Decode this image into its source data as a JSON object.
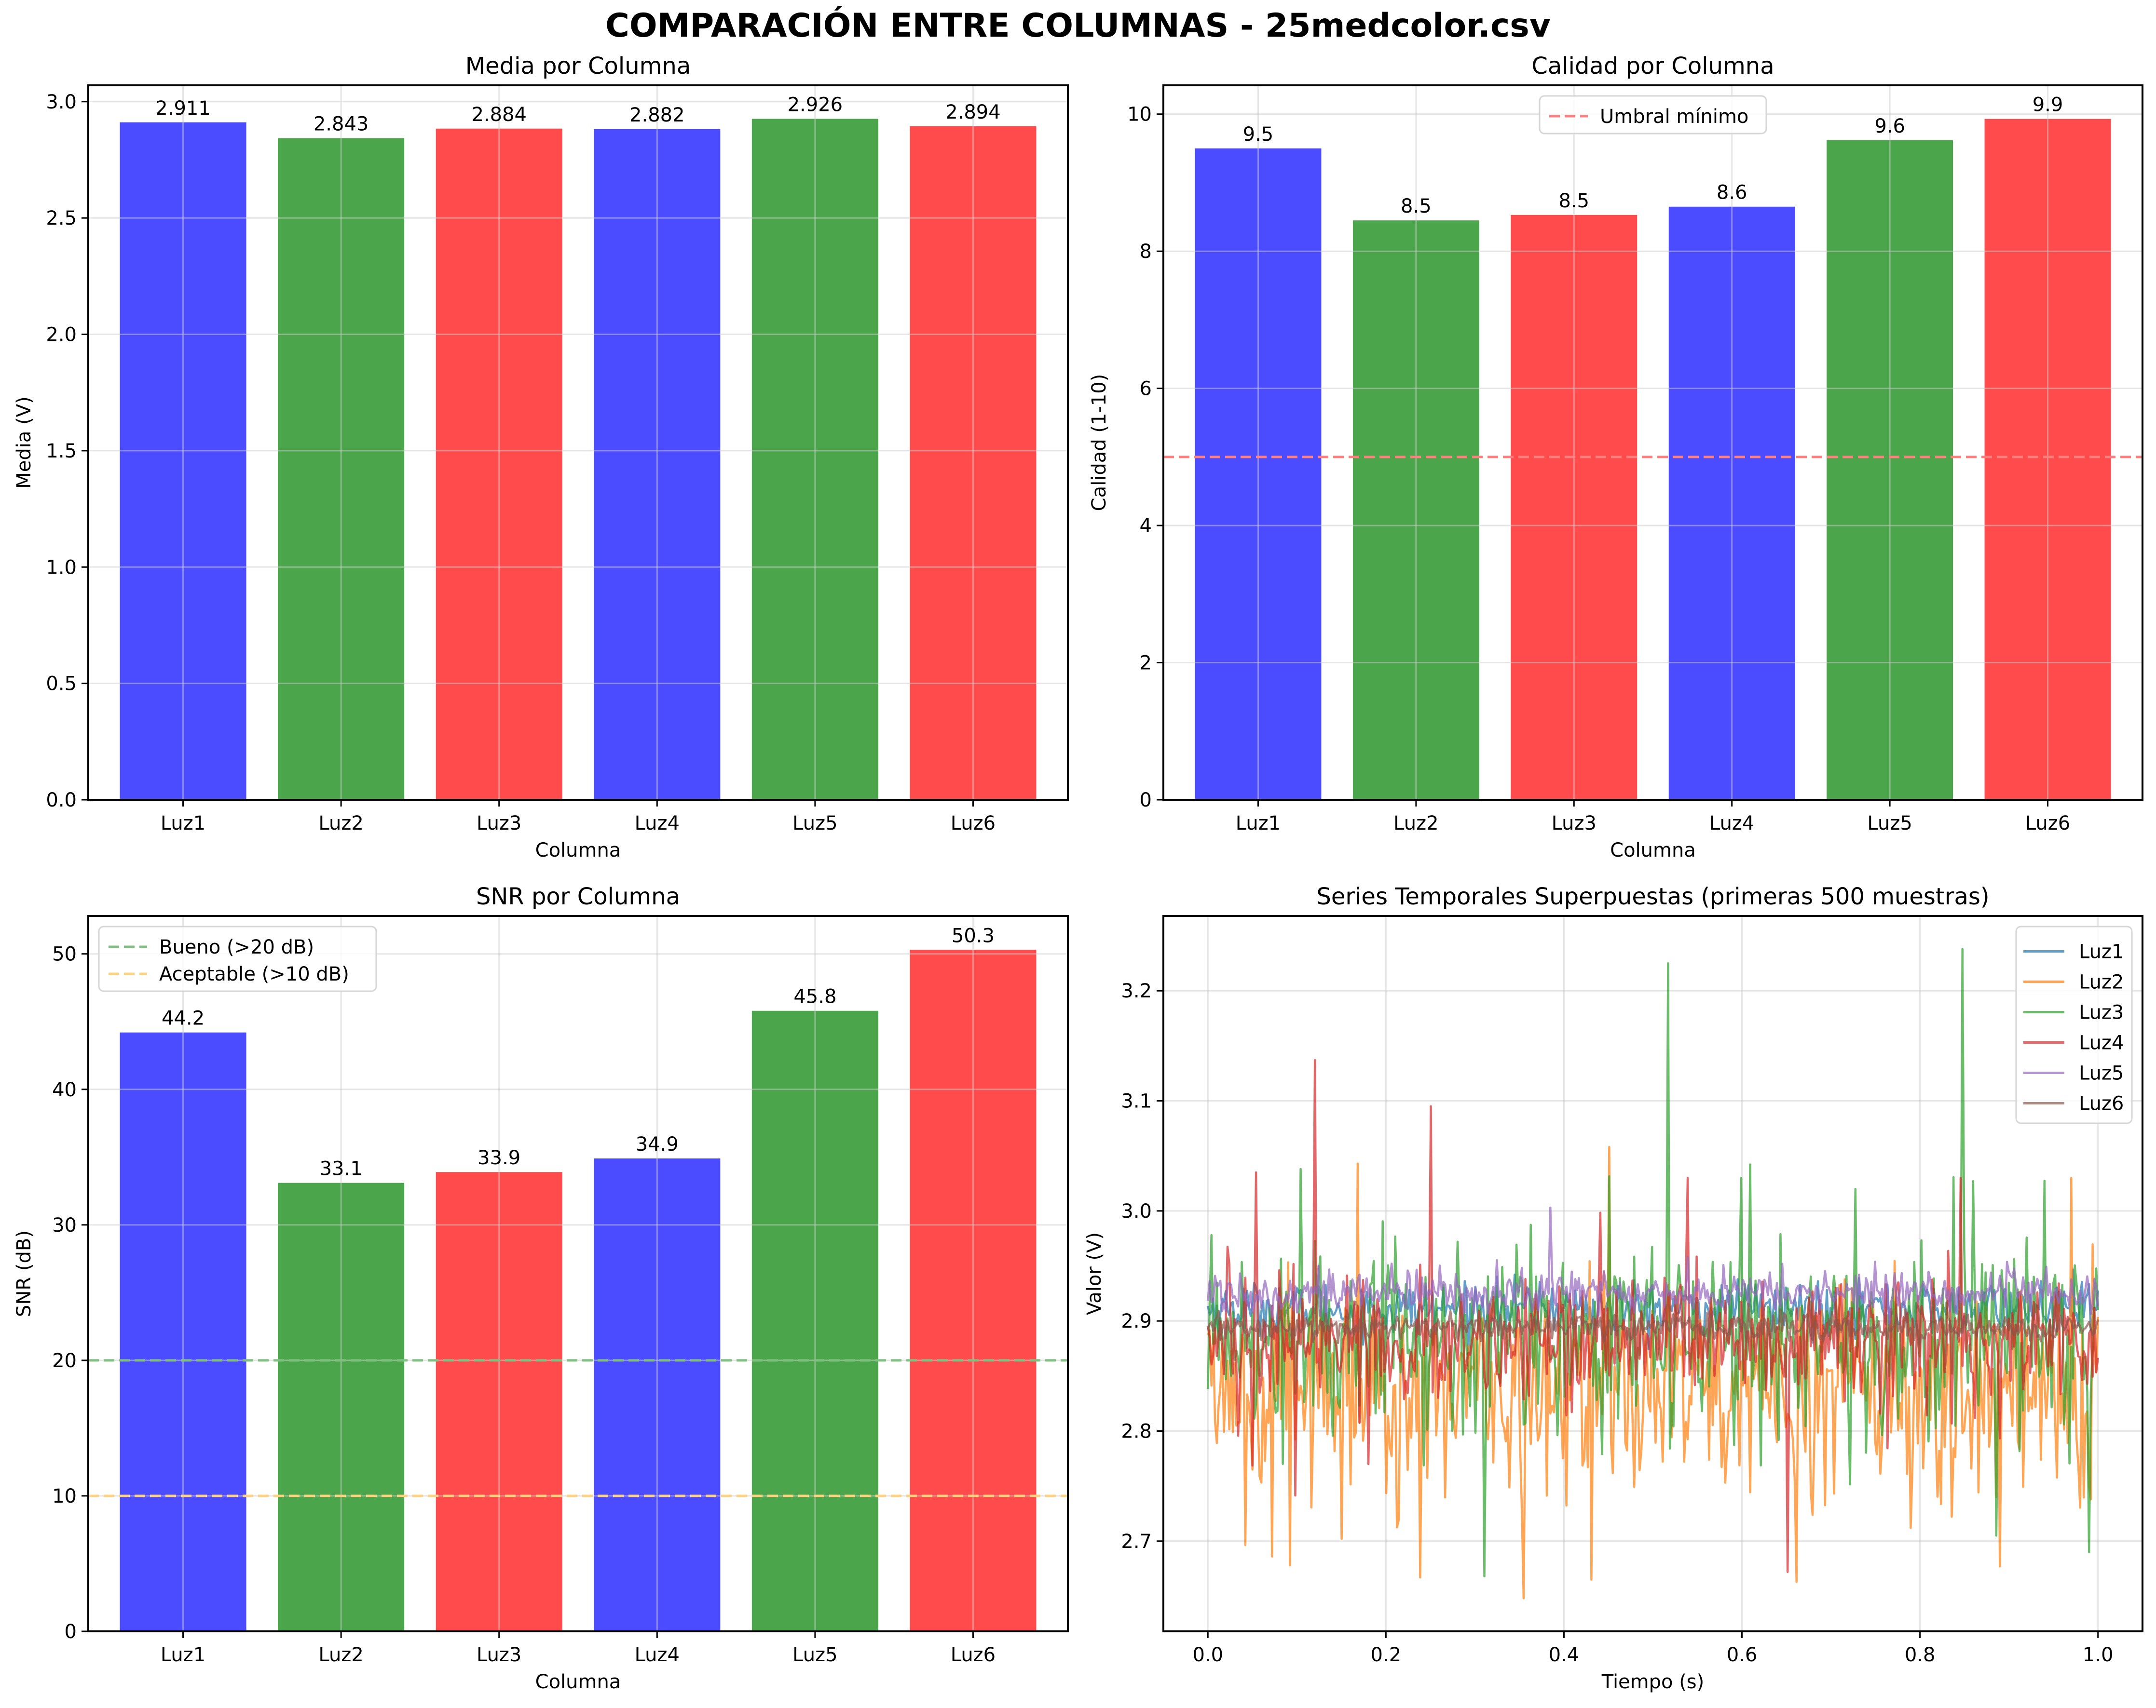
{
  "suptitle": "COMPARACIÓN ENTRE COLUMNAS - 25medcolor.csv",
  "colors": {
    "bar_blue": "#4b4bff",
    "bar_green": "#4ba64b",
    "bar_red": "#ff4b4b",
    "grid": "#e5e5e5",
    "threshold_red": "#ff7f7f",
    "threshold_green": "#7fbf7f",
    "threshold_orange": "#ffd27f"
  },
  "chart_data": [
    {
      "id": "media",
      "type": "bar",
      "title": "Media por Columna",
      "xlabel": "Columna",
      "ylabel": "Media (V)",
      "categories": [
        "Luz1",
        "Luz2",
        "Luz3",
        "Luz4",
        "Luz5",
        "Luz6"
      ],
      "values": [
        2.911,
        2.843,
        2.884,
        2.882,
        2.926,
        2.894
      ],
      "value_labels": [
        "2.911",
        "2.843",
        "2.884",
        "2.882",
        "2.926",
        "2.894"
      ],
      "bar_colors": [
        "#4b4bff",
        "#4ba64b",
        "#ff4b4b",
        "#4b4bff",
        "#4ba64b",
        "#ff4b4b"
      ],
      "ylim": [
        0,
        3.07
      ],
      "yticks": [
        0.0,
        0.5,
        1.0,
        1.5,
        2.0,
        2.5,
        3.0
      ],
      "ytick_labels": [
        "0.0",
        "0.5",
        "1.0",
        "1.5",
        "2.0",
        "2.5",
        "3.0"
      ],
      "grid": true,
      "hlines": [],
      "legend": null
    },
    {
      "id": "calidad",
      "type": "bar",
      "title": "Calidad por Columna",
      "xlabel": "Columna",
      "ylabel": "Calidad (1-10)",
      "categories": [
        "Luz1",
        "Luz2",
        "Luz3",
        "Luz4",
        "Luz5",
        "Luz6"
      ],
      "values": [
        9.5,
        8.45,
        8.53,
        8.65,
        9.62,
        9.93
      ],
      "value_labels": [
        "9.5",
        "8.5",
        "8.5",
        "8.6",
        "9.6",
        "9.9"
      ],
      "bar_colors": [
        "#4b4bff",
        "#4ba64b",
        "#ff4b4b",
        "#4b4bff",
        "#4ba64b",
        "#ff4b4b"
      ],
      "ylim": [
        0,
        10.42
      ],
      "yticks": [
        0,
        2,
        4,
        6,
        8,
        10
      ],
      "ytick_labels": [
        "0",
        "2",
        "4",
        "6",
        "8",
        "10"
      ],
      "grid": true,
      "hlines": [
        {
          "y": 5,
          "color": "#ff7f7f",
          "label": "Umbral mínimo"
        }
      ],
      "legend": {
        "placement": "upper-center",
        "entries": [
          "Umbral mínimo"
        ]
      }
    },
    {
      "id": "snr",
      "type": "bar",
      "title": "SNR por Columna",
      "xlabel": "Columna",
      "ylabel": "SNR (dB)",
      "categories": [
        "Luz1",
        "Luz2",
        "Luz3",
        "Luz4",
        "Luz5",
        "Luz6"
      ],
      "values": [
        44.2,
        33.1,
        33.9,
        34.9,
        45.8,
        50.3
      ],
      "value_labels": [
        "44.2",
        "33.1",
        "33.9",
        "34.9",
        "45.8",
        "50.3"
      ],
      "bar_colors": [
        "#4b4bff",
        "#4ba64b",
        "#ff4b4b",
        "#4b4bff",
        "#4ba64b",
        "#ff4b4b"
      ],
      "ylim": [
        0,
        52.8
      ],
      "yticks": [
        0,
        10,
        20,
        30,
        40,
        50
      ],
      "ytick_labels": [
        "0",
        "10",
        "20",
        "30",
        "40",
        "50"
      ],
      "grid": true,
      "hlines": [
        {
          "y": 20,
          "color": "#7fbf7f",
          "label": "Bueno (>20 dB)"
        },
        {
          "y": 10,
          "color": "#ffd27f",
          "label": "Aceptable (>10 dB)"
        }
      ],
      "legend": {
        "placement": "upper-left",
        "entries": [
          "Bueno (>20 dB)",
          "Aceptable (>10 dB)"
        ]
      }
    },
    {
      "id": "series",
      "type": "line",
      "title": "Series Temporales Superpuestas (primeras 500 muestras)",
      "xlabel": "Tiempo (s)",
      "ylabel": "Valor (V)",
      "xlim": [
        -0.05,
        1.05
      ],
      "ylim": [
        2.618,
        3.268
      ],
      "xticks": [
        0.0,
        0.2,
        0.4,
        0.6,
        0.8,
        1.0
      ],
      "xtick_labels": [
        "0.0",
        "0.2",
        "0.4",
        "0.6",
        "0.8",
        "1.0"
      ],
      "yticks": [
        2.7,
        2.8,
        2.9,
        3.0,
        3.1,
        3.2
      ],
      "ytick_labels": [
        "2.7",
        "2.8",
        "2.9",
        "3.0",
        "3.1",
        "3.2"
      ],
      "grid": true,
      "n_samples": 500,
      "t_range": [
        0.0,
        1.0
      ],
      "legend": {
        "placement": "upper-right",
        "entries": [
          "Luz1",
          "Luz2",
          "Luz3",
          "Luz4",
          "Luz5",
          "Luz6"
        ]
      },
      "series": [
        {
          "name": "Luz1",
          "color": "#1f77b4",
          "mean": 2.911,
          "spread": 0.012,
          "spikes": []
        },
        {
          "name": "Luz2",
          "color": "#ff7f0e",
          "mean": 2.843,
          "spread": 0.045,
          "spikes": [
            [
              0.072,
              2.686
            ],
            [
              0.168,
              3.043
            ],
            [
              0.238,
              2.667
            ],
            [
              0.355,
              2.648
            ],
            [
              0.43,
              2.665
            ],
            [
              0.45,
              3.058
            ],
            [
              0.662,
              2.663
            ],
            [
              0.79,
              2.712
            ],
            [
              0.89,
              2.677
            ],
            [
              0.97,
              3.03
            ]
          ]
        },
        {
          "name": "Luz3",
          "color": "#2ca02c",
          "mean": 2.884,
          "spread": 0.04,
          "spikes": [
            [
              0.005,
              2.978
            ],
            [
              0.105,
              3.038
            ],
            [
              0.31,
              2.668
            ],
            [
              0.517,
              3.225
            ],
            [
              0.848,
              3.238
            ],
            [
              0.86,
              3.027
            ],
            [
              0.885,
              2.705
            ],
            [
              0.99,
              2.69
            ],
            [
              0.6,
              3.03
            ]
          ]
        },
        {
          "name": "Luz4",
          "color": "#d62728",
          "mean": 2.882,
          "spread": 0.025,
          "spikes": [
            [
              0.055,
              3.035
            ],
            [
              0.12,
              3.137
            ],
            [
              0.18,
              2.77
            ],
            [
              0.25,
              3.095
            ],
            [
              0.54,
              3.03
            ],
            [
              0.652,
              2.672
            ],
            [
              0.845,
              3.03
            ]
          ]
        },
        {
          "name": "Luz5",
          "color": "#9467bd",
          "mean": 2.926,
          "spread": 0.01,
          "spikes": [
            [
              0.385,
              3.003
            ]
          ]
        },
        {
          "name": "Luz6",
          "color": "#8c564b",
          "mean": 2.894,
          "spread": 0.006,
          "spikes": []
        }
      ]
    }
  ]
}
